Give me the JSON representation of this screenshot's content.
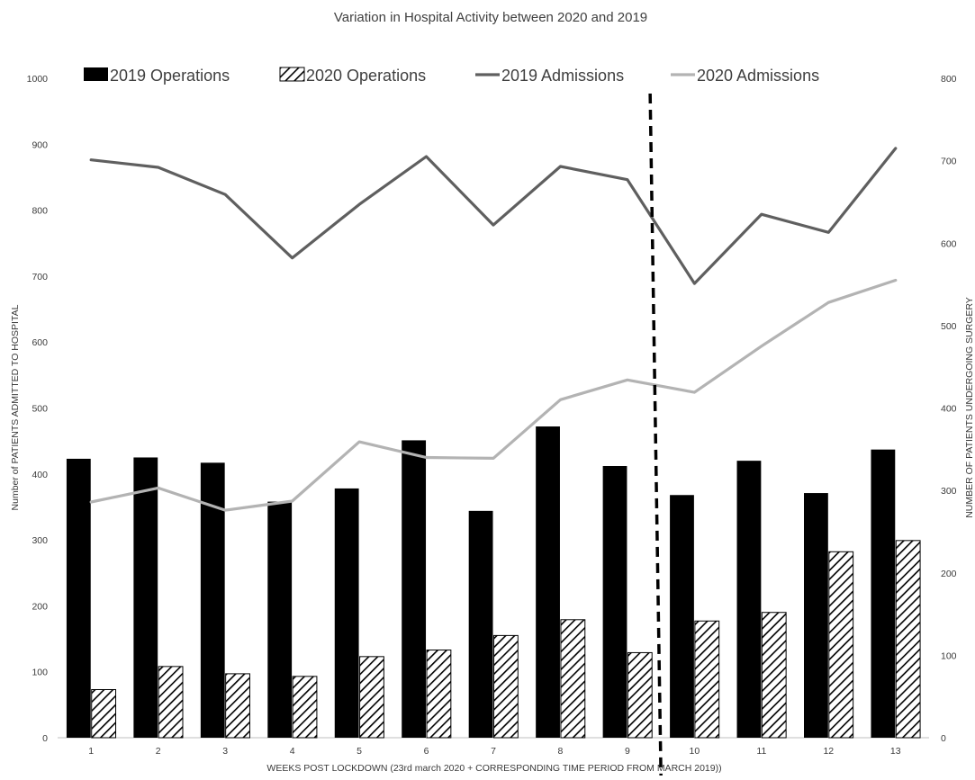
{
  "chart_data": {
    "type": "bar",
    "title": "Variation in Hospital Activity between 2020 and 2019",
    "xlabel": "WEEKS POST LOCKDOWN (23rd march 2020 + CORRESPONDING TIME PERIOD FROM MARCH 2019))",
    "ylabel_left": "Number of PATIENTS ADMITTED TO HOSPITAL",
    "ylabel_right": "NUMBER OF PATIENTS UNDERGOING SURGERY",
    "categories": [
      "1",
      "2",
      "3",
      "4",
      "5",
      "6",
      "7",
      "8",
      "9",
      "10",
      "11",
      "12",
      "13"
    ],
    "y_left_lim": [
      0,
      1000
    ],
    "y_left_ticks": [
      "0",
      "100",
      "200",
      "300",
      "400",
      "500",
      "600",
      "700",
      "800",
      "900",
      "1000"
    ],
    "y_right_lim": [
      0,
      800
    ],
    "y_right_ticks": [
      "0",
      "100",
      "200",
      "300",
      "400",
      "500",
      "600",
      "700",
      "800"
    ],
    "legend_position": "top",
    "grid": false,
    "lockdown_marker_between": [
      9,
      10
    ],
    "series": [
      {
        "name": "2019 Operations",
        "type": "bar",
        "axis": "left",
        "style": "solid",
        "color": "#000000",
        "values": [
          423,
          425,
          417,
          358,
          378,
          451,
          344,
          472,
          412,
          368,
          420,
          371,
          437
        ]
      },
      {
        "name": "2020 Operations",
        "type": "bar",
        "axis": "left",
        "style": "hatched",
        "color": "#000000",
        "values": [
          73,
          108,
          97,
          93,
          123,
          133,
          155,
          179,
          129,
          177,
          190,
          282,
          299
        ]
      },
      {
        "name": "2019 Admissions",
        "type": "line",
        "axis": "right",
        "color": "#5f5f5f",
        "values": [
          701,
          692,
          659,
          582,
          647,
          705,
          622,
          693,
          677,
          551,
          635,
          613,
          715
        ]
      },
      {
        "name": "2020 Admissions",
        "type": "line",
        "axis": "right",
        "color": "#b3b3b3",
        "values": [
          286,
          303,
          276,
          287,
          359,
          340,
          339,
          410,
          434,
          419,
          475,
          528,
          555
        ]
      }
    ]
  }
}
